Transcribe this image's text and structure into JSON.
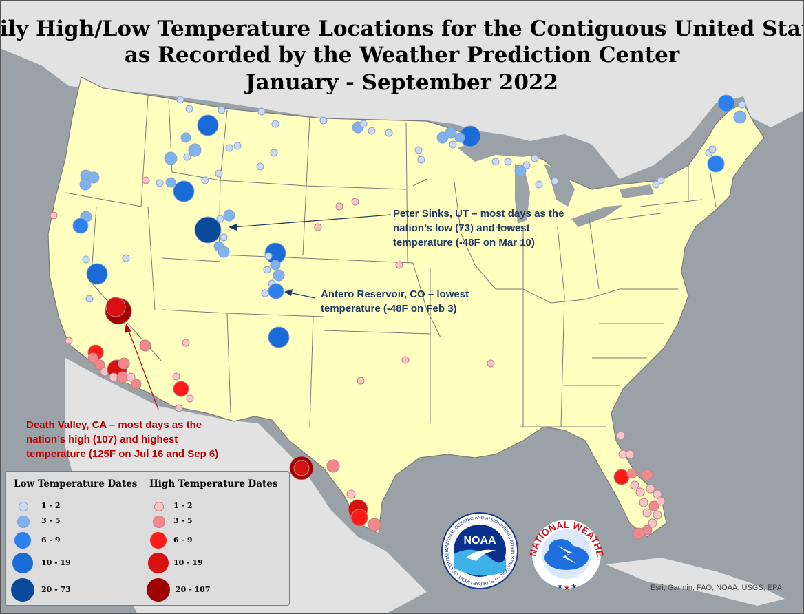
{
  "title": {
    "line1": "Daily High/Low Temperature Locations for the Contiguous United States",
    "line2": "as Recorded by the Weather Prediction Center",
    "line3": "January - September 2022"
  },
  "annotations": {
    "peter_sinks": [
      "Peter Sinks, UT – most days as the",
      "nation’s low (73) and lowest",
      "temperature (-48F on Mar 10)"
    ],
    "antero": [
      "Antero Reservoir, CO – lowest",
      "temperature (-48F on Feb 3)"
    ],
    "death_valley": [
      "Death Valley, CA – most days as the",
      "nation’s high (107) and highest",
      "temperature (125F on Jul 16 and Sep 6)"
    ]
  },
  "legend": {
    "low_title": "Low Temperature Dates",
    "high_title": "High Temperature Dates",
    "low_items": [
      {
        "label": "1 - 2",
        "color": "#c9d9f5"
      },
      {
        "label": "3 - 5",
        "color": "#7fb2ee"
      },
      {
        "label": "6 - 9",
        "color": "#2b80ee"
      },
      {
        "label": "10 - 19",
        "color": "#1a6ad8"
      },
      {
        "label": "20 - 73",
        "color": "#0a4a9a"
      }
    ],
    "high_items": [
      {
        "label": "1 - 2",
        "color": "#f7c4c8"
      },
      {
        "label": "3 - 5",
        "color": "#f2888e"
      },
      {
        "label": "6 - 9",
        "color": "#ff1a1a"
      },
      {
        "label": "10 - 19",
        "color": "#d81010"
      },
      {
        "label": "20 - 107",
        "color": "#a00000"
      }
    ]
  },
  "logos": {
    "noaa_center": "NOAA",
    "noaa_ring": "NATIONAL OCEANIC AND ATMOSPHERIC ADMINISTRATION · U.S. DEPARTMENT OF COMMERCE",
    "nws_ring": "NATIONAL WEATHER SERVICE"
  },
  "credits": "Esri, Garmin, FAO, NOAA, USGS, EPA",
  "colors": {
    "land_us": "#ffffc0",
    "land_other": "#e2e2e2",
    "water": "#9aa2a8",
    "border": "#7a7a7a"
  }
}
